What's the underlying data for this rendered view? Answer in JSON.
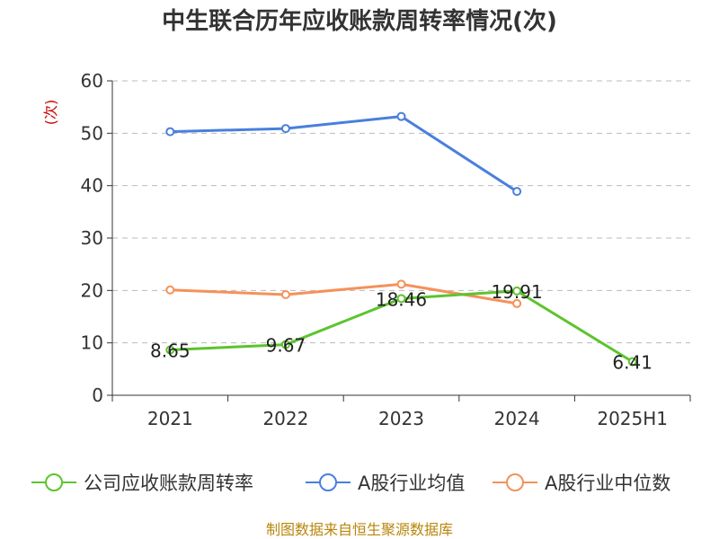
{
  "chart_data": {
    "type": "line",
    "title": "中生联合历年应收账款周转率情况(次)",
    "ylabel": "(次)",
    "categories": [
      "2021",
      "2022",
      "2023",
      "2024",
      "2025H1"
    ],
    "ylim": [
      0,
      60
    ],
    "yticks": [
      0,
      10,
      20,
      30,
      40,
      50,
      60
    ],
    "grid": true,
    "legend_position": "bottom",
    "series": [
      {
        "name": "公司应收账款周转率",
        "color": "#5cc42d",
        "values": [
          8.65,
          9.67,
          18.46,
          19.91,
          6.41
        ],
        "data_labels": [
          "8.65",
          "9.67",
          "18.46",
          "19.91",
          "6.41"
        ]
      },
      {
        "name": "A股行业均值",
        "color": "#4a7fdc",
        "values": [
          50.3,
          50.9,
          53.2,
          38.9,
          null
        ]
      },
      {
        "name": "A股行业中位数",
        "color": "#f5915a",
        "values": [
          20.1,
          19.2,
          21.2,
          17.5,
          null
        ]
      }
    ]
  },
  "source_text": "制图数据来自恒生聚源数据库"
}
